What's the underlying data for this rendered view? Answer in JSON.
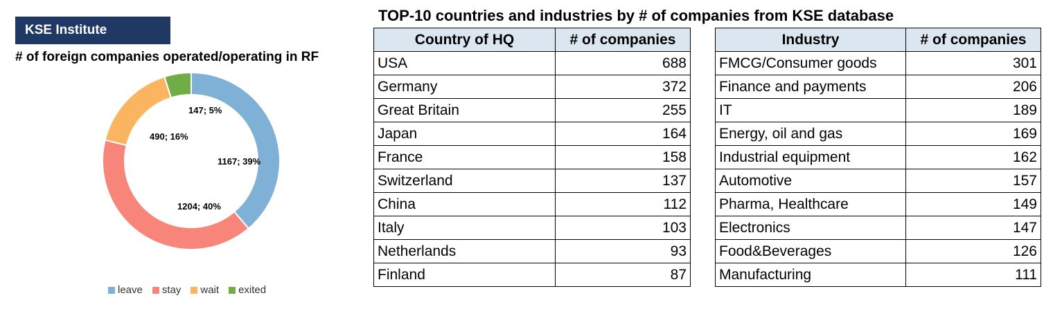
{
  "brand": "KSE Institute",
  "chart_data": [
    {
      "type": "pie",
      "title": "# of foreign companies operated/operating in RF",
      "donut": true,
      "categories": [
        "leave",
        "stay",
        "wait",
        "exited"
      ],
      "values": [
        1167,
        1204,
        490,
        147
      ],
      "labels": [
        "1167; 39%",
        "1204; 40%",
        "490; 16%",
        "147; 5%"
      ],
      "colors": [
        "#7fb0d5",
        "#f8857a",
        "#fbb561",
        "#70ad47"
      ],
      "legend": "bottom"
    },
    {
      "type": "table",
      "title": "TOP-10 countries and industries by # of companies from KSE database",
      "columns": [
        "Country of HQ",
        "# of companies"
      ],
      "rows": [
        [
          "USA",
          "688"
        ],
        [
          "Germany",
          "372"
        ],
        [
          "Great Britain",
          "255"
        ],
        [
          "Japan",
          "164"
        ],
        [
          "France",
          "158"
        ],
        [
          "Switzerland",
          "137"
        ],
        [
          "China",
          "112"
        ],
        [
          "Italy",
          "103"
        ],
        [
          "Netherlands",
          "93"
        ],
        [
          "Finland",
          "87"
        ]
      ]
    },
    {
      "type": "table",
      "columns": [
        "Industry",
        "# of companies"
      ],
      "rows": [
        [
          "FMCG/Consumer goods",
          "301"
        ],
        [
          "Finance and payments",
          "206"
        ],
        [
          "IT",
          "189"
        ],
        [
          "Energy, oil and gas",
          "169"
        ],
        [
          "Industrial equipment",
          "162"
        ],
        [
          "Automotive",
          "157"
        ],
        [
          "Pharma, Healthcare",
          "149"
        ],
        [
          "Electronics",
          "147"
        ],
        [
          "Food&Beverages",
          "126"
        ],
        [
          "Manufacturing",
          "111"
        ]
      ]
    }
  ]
}
